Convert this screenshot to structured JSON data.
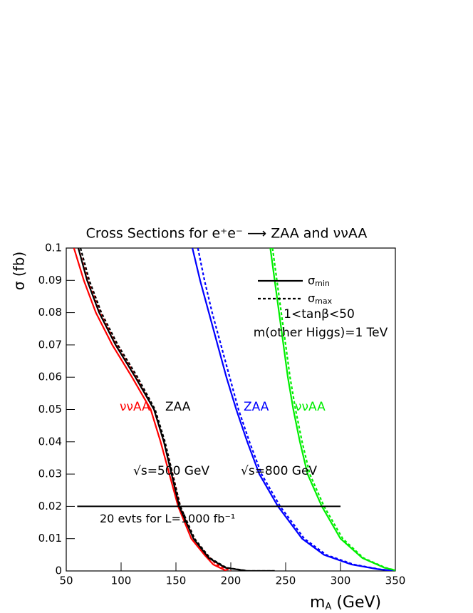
{
  "chart_data": {
    "type": "line",
    "title": "Cross Sections for e⁺e⁻ ⟶ ZAA and ννAA",
    "y_label": "σ (fb)",
    "x_label": [
      "m",
      "A",
      " (GeV)"
    ],
    "xlim": [
      50,
      350
    ],
    "ylim": [
      0,
      0.1
    ],
    "xticks": [
      50,
      100,
      150,
      200,
      250,
      300,
      350
    ],
    "yticks": [
      0,
      0.01,
      0.02,
      0.03,
      0.04,
      0.05,
      0.06,
      0.07,
      0.08,
      0.09,
      0.1
    ],
    "legend": [
      {
        "symbol": "σ",
        "sub": "min",
        "dashed": false
      },
      {
        "symbol": "σ",
        "sub": "max",
        "dashed": true
      }
    ],
    "series": [
      {
        "color": "#ff0000",
        "dashed": false,
        "x": [
          57,
          66,
          77,
          92,
          110,
          127,
          136,
          144,
          152,
          164,
          176,
          184,
          196
        ],
        "values": [
          0.1,
          0.09,
          0.08,
          0.07,
          0.06,
          0.05,
          0.04,
          0.03,
          0.02,
          0.01,
          0.005,
          0.002,
          0
        ]
      },
      {
        "color": "#ff0000",
        "dashed": true,
        "x": [
          61,
          70,
          81,
          96,
          114,
          130,
          139,
          147,
          154,
          166,
          178,
          187,
          200
        ],
        "values": [
          0.1,
          0.09,
          0.08,
          0.07,
          0.06,
          0.05,
          0.04,
          0.03,
          0.02,
          0.01,
          0.005,
          0.002,
          0
        ]
      },
      {
        "color": "#000000",
        "dashed": false,
        "x": [
          61,
          69,
          80,
          95,
          113,
          130,
          139,
          146,
          153,
          166,
          180,
          195,
          215,
          240
        ],
        "values": [
          0.1,
          0.09,
          0.08,
          0.07,
          0.06,
          0.05,
          0.04,
          0.03,
          0.02,
          0.01,
          0.004,
          0.001,
          0,
          0
        ]
      },
      {
        "color": "#000000",
        "dashed": true,
        "x": [
          63,
          71,
          82,
          97,
          115,
          131,
          140,
          147,
          154,
          167,
          181,
          196,
          216,
          240
        ],
        "values": [
          0.1,
          0.09,
          0.08,
          0.07,
          0.06,
          0.05,
          0.04,
          0.03,
          0.02,
          0.01,
          0.004,
          0.001,
          0,
          0
        ]
      },
      {
        "color": "#0000ff",
        "dashed": false,
        "x": [
          165,
          172,
          180,
          188,
          196,
          205,
          215,
          226,
          243,
          265,
          285,
          310,
          335,
          350
        ],
        "values": [
          0.1,
          0.09,
          0.08,
          0.07,
          0.06,
          0.05,
          0.04,
          0.03,
          0.02,
          0.01,
          0.005,
          0.002,
          0.0005,
          0
        ]
      },
      {
        "color": "#0000ff",
        "dashed": true,
        "x": [
          170,
          176,
          183,
          191,
          199,
          207,
          217,
          228,
          245,
          267,
          287,
          312,
          336,
          350
        ],
        "values": [
          0.1,
          0.09,
          0.08,
          0.07,
          0.06,
          0.05,
          0.04,
          0.03,
          0.02,
          0.01,
          0.005,
          0.002,
          0.0005,
          0
        ]
      },
      {
        "color": "#00ee00",
        "dashed": false,
        "x": [
          236,
          240,
          244,
          248,
          252,
          257,
          263,
          270,
          283,
          300,
          320,
          340,
          350
        ],
        "values": [
          0.1,
          0.09,
          0.08,
          0.07,
          0.06,
          0.05,
          0.04,
          0.03,
          0.02,
          0.01,
          0.004,
          0.001,
          0.0002
        ]
      },
      {
        "color": "#00ee00",
        "dashed": true,
        "x": [
          238,
          242,
          246,
          250,
          254,
          259,
          265,
          272,
          285,
          302,
          321,
          341,
          350
        ],
        "values": [
          0.1,
          0.09,
          0.08,
          0.07,
          0.06,
          0.05,
          0.04,
          0.03,
          0.02,
          0.01,
          0.004,
          0.001,
          0.0002
        ]
      }
    ],
    "reference_line": {
      "y": 0.02,
      "x": [
        60,
        300
      ],
      "label": "20 evts for L=1000 fb⁻¹"
    },
    "annotations": [
      {
        "text": "ννAA",
        "color": "#ff0000"
      },
      {
        "text": "ZAA",
        "color": "#000000"
      },
      {
        "text": "ZAA",
        "color": "#0000ff"
      },
      {
        "text": "ννAA",
        "color": "#00ee00"
      },
      {
        "text": "√s=500 GeV",
        "color": "#000000"
      },
      {
        "text": "√s=800 GeV",
        "color": "#000000"
      },
      {
        "text": "1<tanβ<50",
        "color": "#000000"
      },
      {
        "text": "m(other Higgs)=1 TeV",
        "color": "#000000"
      }
    ]
  }
}
